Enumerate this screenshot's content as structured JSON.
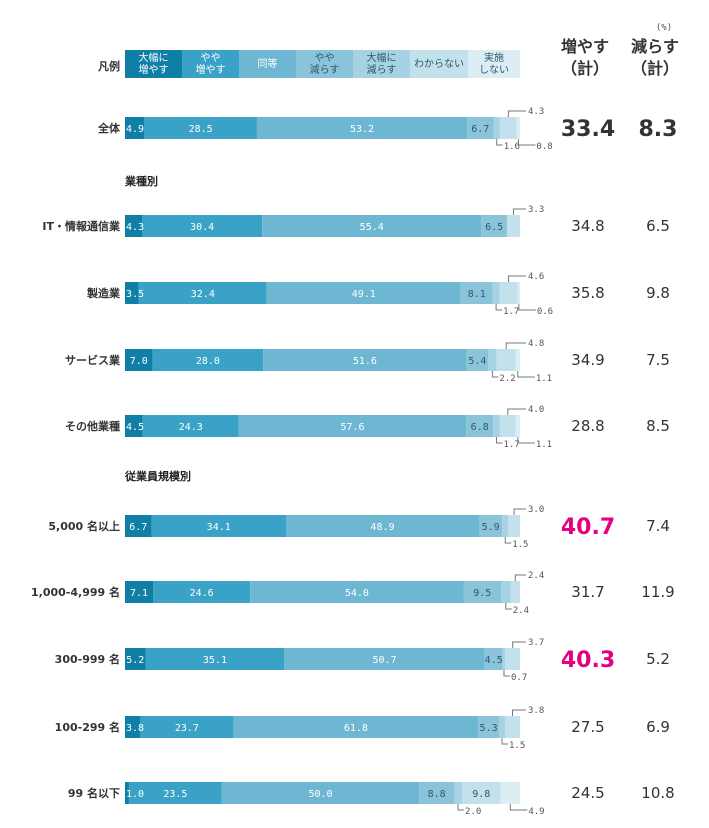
{
  "chart_data": {
    "type": "bar",
    "orientation": "horizontal-stacked-100",
    "unit": "(%)",
    "legend_title": "凡例",
    "legend": [
      "大幅に\n増やす",
      "やや\n増やす",
      "同等",
      "やや\n減らす",
      "大幅に\n減らす",
      "わからない",
      "実施\nしない"
    ],
    "colors": [
      "#0f7fa6",
      "#3aa2c6",
      "#6db7d3",
      "#8bc4da",
      "#a6d2e3",
      "#c3e1ec",
      "#dcedf3"
    ],
    "columns": {
      "increase": "増やす\n（計）",
      "decrease": "減らす\n（計）"
    },
    "sections": [
      "業種別",
      "従業員規模別"
    ],
    "highlight_color": "#e4007f",
    "rows": [
      {
        "label": "全体",
        "values": [
          4.9,
          28.5,
          53.2,
          6.7,
          1.6,
          4.3,
          0.8
        ],
        "increase": "33.4",
        "decrease": "8.3",
        "big": true
      },
      {
        "label": "IT・情報通信業",
        "values": [
          4.3,
          30.4,
          55.4,
          6.5,
          0,
          3.3,
          0
        ],
        "increase": "34.8",
        "decrease": "6.5",
        "section": 0
      },
      {
        "label": "製造業",
        "values": [
          3.5,
          32.4,
          49.1,
          8.1,
          1.7,
          4.6,
          0.6
        ],
        "increase": "35.8",
        "decrease": "9.8"
      },
      {
        "label": "サービス業",
        "values": [
          7.0,
          28.0,
          51.6,
          5.4,
          2.2,
          4.8,
          1.1
        ],
        "increase": "34.9",
        "decrease": "7.5"
      },
      {
        "label": "その他業種",
        "values": [
          4.5,
          24.3,
          57.6,
          6.8,
          1.7,
          4.0,
          1.1
        ],
        "increase": "28.8",
        "decrease": "8.5"
      },
      {
        "label": "5,000 名以上",
        "values": [
          6.7,
          34.1,
          48.9,
          5.9,
          1.5,
          3.0,
          0
        ],
        "increase": "40.7",
        "decrease": "7.4",
        "section": 1,
        "highlight": true
      },
      {
        "label": "1,000-4,999 名",
        "values": [
          7.1,
          24.6,
          54.0,
          9.5,
          2.4,
          2.4,
          0
        ],
        "increase": "31.7",
        "decrease": "11.9"
      },
      {
        "label": "300-999 名",
        "values": [
          5.2,
          35.1,
          50.7,
          4.5,
          0.7,
          3.7,
          0
        ],
        "increase": "40.3",
        "decrease": "5.2",
        "highlight": true
      },
      {
        "label": "100-299 名",
        "values": [
          3.8,
          23.7,
          61.8,
          5.3,
          1.5,
          3.8,
          0
        ],
        "increase": "27.5",
        "decrease": "6.9"
      },
      {
        "label": "99 名以下",
        "values": [
          1.0,
          23.5,
          50.0,
          8.8,
          2.0,
          9.8,
          4.9
        ],
        "increase": "24.5",
        "decrease": "10.8"
      }
    ]
  }
}
